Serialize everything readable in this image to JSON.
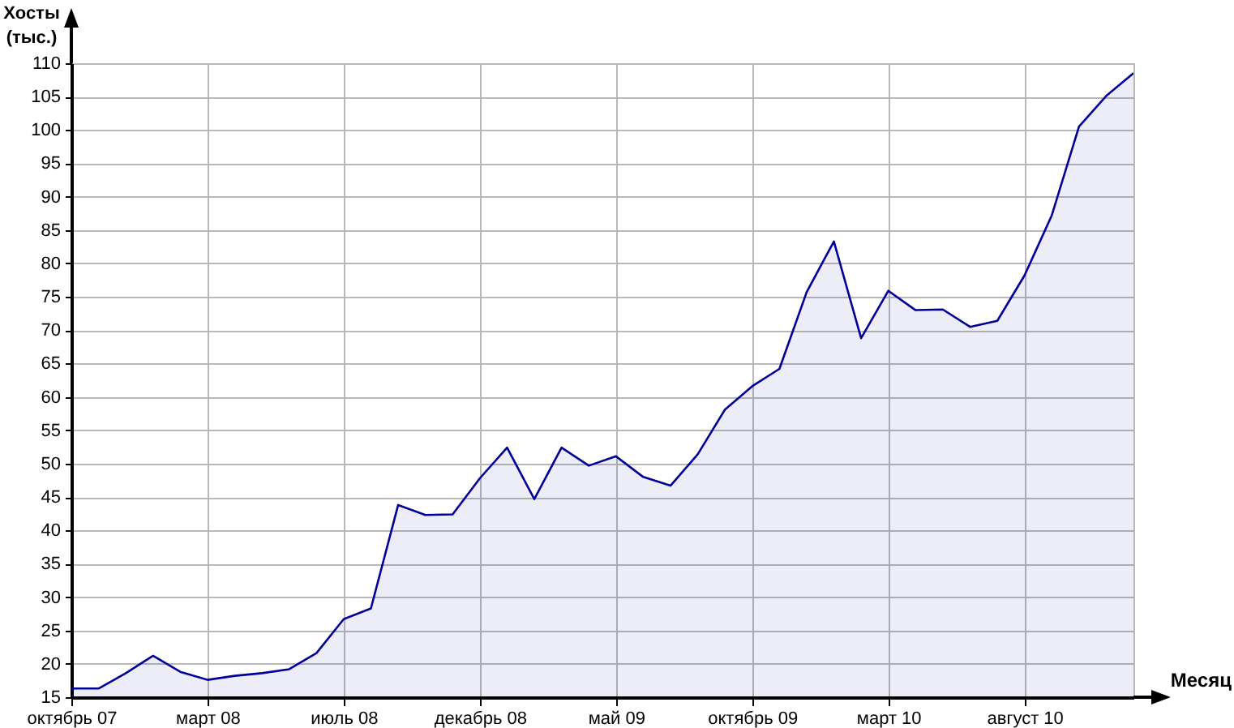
{
  "chart_data": {
    "type": "area",
    "ylabel": "Хосты (тыс.)",
    "xlabel": "Месяц",
    "categories": [
      "октябрь 07",
      null,
      null,
      null,
      null,
      "март 08",
      null,
      null,
      null,
      null,
      "июль 08",
      null,
      null,
      null,
      null,
      "декабрь 08",
      null,
      null,
      null,
      null,
      "май 09",
      null,
      null,
      null,
      null,
      "октябрь 09",
      null,
      null,
      null,
      null,
      "март 10",
      null,
      null,
      null,
      null,
      "август 10",
      null,
      null,
      null,
      null
    ],
    "series": [
      {
        "color": "#000099",
        "values": [
          16.3,
          16.3,
          18.6,
          21.2,
          18.8,
          17.6,
          18.2,
          18.6,
          19.2,
          21.6,
          26.7,
          28.3,
          43.8,
          42.3,
          42.4,
          47.8,
          52.4,
          44.7,
          52.4,
          49.7,
          51.1,
          48.0,
          46.7,
          51.4,
          58.1,
          61.6,
          64.2,
          75.7,
          83.3,
          68.8,
          75.9,
          73.0,
          73.1,
          70.5,
          71.4,
          78.2,
          87.2,
          100.5,
          105.1,
          108.5
        ]
      }
    ],
    "ylim": [
      15,
      110
    ],
    "yticks": [
      15,
      20,
      25,
      30,
      35,
      40,
      45,
      50,
      55,
      60,
      65,
      70,
      75,
      80,
      85,
      90,
      95,
      100,
      105,
      110
    ],
    "grid": true
  }
}
